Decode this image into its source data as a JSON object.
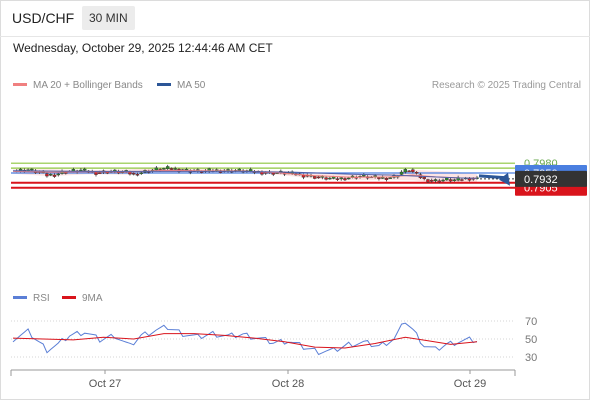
{
  "header": {
    "symbol": "USD/CHF",
    "interval": "30 MIN",
    "datetime": "Wednesday, October 29, 2025 12:44:46 AM CET",
    "credit": "Research © 2025 Trading Central"
  },
  "legend": {
    "ma_bb": "MA 20 + Bollinger Bands",
    "ma50": "MA 50",
    "rsi": "RSI",
    "rsi_ma": "9MA"
  },
  "colors": {
    "ma20": "#f08080",
    "bands_fill": "#fde0e0",
    "ma50": "#5060a8",
    "resistance": "#8dc63f",
    "pivot": "#4a7fe0",
    "support": "#d9141c",
    "last_price_bg": "#333333",
    "candle_up": "#2e8b2e",
    "candle_down": "#c8202a",
    "arrow": "#2c5697",
    "rsi": "#5b7fd6",
    "rsi_ma": "#d9141c"
  },
  "chart_data": [
    {
      "type": "candlestick",
      "instrument": "USD/CHF",
      "timeframe": "30 MIN",
      "x_ticks": [
        "Oct 27",
        "Oct 28",
        "Oct 29"
      ],
      "levels": [
        {
          "value": 0.798,
          "label": "0.7980",
          "kind": "resistance"
        },
        {
          "value": 0.7965,
          "label": "0.7965",
          "kind": "resistance"
        },
        {
          "value": 0.795,
          "label": "0.7950",
          "kind": "pivot"
        },
        {
          "value": 0.792,
          "label": "0.7920",
          "kind": "support"
        },
        {
          "value": 0.7905,
          "label": "0.7905",
          "kind": "support"
        }
      ],
      "last_price": {
        "value": 0.7932,
        "label": "0.7932"
      },
      "target": 0.7905,
      "close_path": [
        {
          "i": 0,
          "c": 0.7957
        },
        {
          "i": 4,
          "c": 0.796
        },
        {
          "i": 7,
          "c": 0.7952
        },
        {
          "i": 9,
          "c": 0.7943
        },
        {
          "i": 11,
          "c": 0.7945
        },
        {
          "i": 14,
          "c": 0.7955
        },
        {
          "i": 18,
          "c": 0.7958
        },
        {
          "i": 22,
          "c": 0.7951
        },
        {
          "i": 26,
          "c": 0.7955
        },
        {
          "i": 30,
          "c": 0.7952
        },
        {
          "i": 32,
          "c": 0.7946
        },
        {
          "i": 35,
          "c": 0.7955
        },
        {
          "i": 38,
          "c": 0.7961
        },
        {
          "i": 41,
          "c": 0.7964
        },
        {
          "i": 44,
          "c": 0.796
        },
        {
          "i": 47,
          "c": 0.7957
        },
        {
          "i": 50,
          "c": 0.7955
        },
        {
          "i": 53,
          "c": 0.7958
        },
        {
          "i": 56,
          "c": 0.7957
        },
        {
          "i": 59,
          "c": 0.7958
        },
        {
          "i": 62,
          "c": 0.7956
        },
        {
          "i": 65,
          "c": 0.7953
        },
        {
          "i": 68,
          "c": 0.795
        },
        {
          "i": 71,
          "c": 0.7951
        },
        {
          "i": 74,
          "c": 0.7948
        },
        {
          "i": 77,
          "c": 0.7943
        },
        {
          "i": 80,
          "c": 0.7938
        },
        {
          "i": 83,
          "c": 0.7934
        },
        {
          "i": 86,
          "c": 0.7932
        },
        {
          "i": 89,
          "c": 0.7936
        },
        {
          "i": 92,
          "c": 0.794
        },
        {
          "i": 95,
          "c": 0.7937
        },
        {
          "i": 98,
          "c": 0.7934
        },
        {
          "i": 101,
          "c": 0.7938
        },
        {
          "i": 103,
          "c": 0.7953
        },
        {
          "i": 105,
          "c": 0.796
        },
        {
          "i": 107,
          "c": 0.7945
        },
        {
          "i": 109,
          "c": 0.793
        },
        {
          "i": 111,
          "c": 0.7926
        },
        {
          "i": 113,
          "c": 0.7927
        },
        {
          "i": 115,
          "c": 0.793
        },
        {
          "i": 117,
          "c": 0.7928
        },
        {
          "i": 119,
          "c": 0.7932
        },
        {
          "i": 121,
          "c": 0.7934
        },
        {
          "i": 123,
          "c": 0.7932
        }
      ],
      "ma20": [
        {
          "i": 0,
          "v": 0.7955
        },
        {
          "i": 10,
          "v": 0.7952
        },
        {
          "i": 20,
          "v": 0.7954
        },
        {
          "i": 30,
          "v": 0.7953
        },
        {
          "i": 40,
          "v": 0.7958
        },
        {
          "i": 50,
          "v": 0.7957
        },
        {
          "i": 60,
          "v": 0.7956
        },
        {
          "i": 70,
          "v": 0.7951
        },
        {
          "i": 80,
          "v": 0.7942
        },
        {
          "i": 90,
          "v": 0.7937
        },
        {
          "i": 100,
          "v": 0.7938
        },
        {
          "i": 106,
          "v": 0.7944
        },
        {
          "i": 112,
          "v": 0.7938
        },
        {
          "i": 118,
          "v": 0.7935
        },
        {
          "i": 123,
          "v": 0.7934
        }
      ],
      "bands_upper": [
        {
          "i": 0,
          "v": 0.7961
        },
        {
          "i": 10,
          "v": 0.7962
        },
        {
          "i": 20,
          "v": 0.7958
        },
        {
          "i": 30,
          "v": 0.7961
        },
        {
          "i": 40,
          "v": 0.7966
        },
        {
          "i": 50,
          "v": 0.7964
        },
        {
          "i": 60,
          "v": 0.796
        },
        {
          "i": 70,
          "v": 0.7957
        },
        {
          "i": 80,
          "v": 0.7951
        },
        {
          "i": 90,
          "v": 0.7946
        },
        {
          "i": 100,
          "v": 0.7947
        },
        {
          "i": 106,
          "v": 0.796
        },
        {
          "i": 112,
          "v": 0.7956
        },
        {
          "i": 118,
          "v": 0.7953
        },
        {
          "i": 123,
          "v": 0.7946
        }
      ],
      "bands_lower": [
        {
          "i": 0,
          "v": 0.7948
        },
        {
          "i": 10,
          "v": 0.794
        },
        {
          "i": 20,
          "v": 0.7946
        },
        {
          "i": 30,
          "v": 0.7945
        },
        {
          "i": 40,
          "v": 0.795
        },
        {
          "i": 50,
          "v": 0.7951
        },
        {
          "i": 60,
          "v": 0.7951
        },
        {
          "i": 70,
          "v": 0.7945
        },
        {
          "i": 80,
          "v": 0.7932
        },
        {
          "i": 90,
          "v": 0.7928
        },
        {
          "i": 100,
          "v": 0.7929
        },
        {
          "i": 106,
          "v": 0.7928
        },
        {
          "i": 112,
          "v": 0.792
        },
        {
          "i": 118,
          "v": 0.7916
        },
        {
          "i": 123,
          "v": 0.7918
        }
      ],
      "ma50": [
        {
          "i": 0,
          "v": 0.7957
        },
        {
          "i": 20,
          "v": 0.7955
        },
        {
          "i": 40,
          "v": 0.7955
        },
        {
          "i": 60,
          "v": 0.7955
        },
        {
          "i": 75,
          "v": 0.7952
        },
        {
          "i": 90,
          "v": 0.7946
        },
        {
          "i": 100,
          "v": 0.7944
        },
        {
          "i": 110,
          "v": 0.7939
        },
        {
          "i": 118,
          "v": 0.7935
        },
        {
          "i": 123,
          "v": 0.7934
        }
      ]
    },
    {
      "type": "line",
      "name": "RSI",
      "y_ticks": [
        70,
        50,
        30
      ],
      "ylim": [
        25,
        75
      ],
      "series": [
        {
          "name": "RSI",
          "values": [
            {
              "i": 0,
              "v": 50
            },
            {
              "i": 4,
              "v": 58
            },
            {
              "i": 7,
              "v": 46
            },
            {
              "i": 9,
              "v": 38
            },
            {
              "i": 12,
              "v": 44
            },
            {
              "i": 15,
              "v": 54
            },
            {
              "i": 19,
              "v": 58
            },
            {
              "i": 23,
              "v": 49
            },
            {
              "i": 27,
              "v": 54
            },
            {
              "i": 31,
              "v": 42
            },
            {
              "i": 34,
              "v": 54
            },
            {
              "i": 38,
              "v": 60
            },
            {
              "i": 41,
              "v": 63
            },
            {
              "i": 45,
              "v": 56
            },
            {
              "i": 49,
              "v": 52
            },
            {
              "i": 53,
              "v": 56
            },
            {
              "i": 57,
              "v": 53
            },
            {
              "i": 61,
              "v": 55
            },
            {
              "i": 65,
              "v": 51
            },
            {
              "i": 69,
              "v": 46
            },
            {
              "i": 73,
              "v": 48
            },
            {
              "i": 77,
              "v": 41
            },
            {
              "i": 81,
              "v": 36
            },
            {
              "i": 85,
              "v": 37
            },
            {
              "i": 89,
              "v": 44
            },
            {
              "i": 93,
              "v": 46
            },
            {
              "i": 97,
              "v": 42
            },
            {
              "i": 101,
              "v": 50
            },
            {
              "i": 104,
              "v": 70
            },
            {
              "i": 106,
              "v": 60
            },
            {
              "i": 109,
              "v": 43
            },
            {
              "i": 112,
              "v": 38
            },
            {
              "i": 115,
              "v": 44
            },
            {
              "i": 118,
              "v": 47
            },
            {
              "i": 121,
              "v": 49
            },
            {
              "i": 123,
              "v": 48
            }
          ]
        },
        {
          "name": "9MA",
          "values": [
            {
              "i": 0,
              "v": 51
            },
            {
              "i": 8,
              "v": 50
            },
            {
              "i": 16,
              "v": 49
            },
            {
              "i": 24,
              "v": 52
            },
            {
              "i": 32,
              "v": 50
            },
            {
              "i": 40,
              "v": 56
            },
            {
              "i": 48,
              "v": 56
            },
            {
              "i": 56,
              "v": 54
            },
            {
              "i": 64,
              "v": 51
            },
            {
              "i": 72,
              "v": 47
            },
            {
              "i": 80,
              "v": 41
            },
            {
              "i": 88,
              "v": 40
            },
            {
              "i": 96,
              "v": 45
            },
            {
              "i": 104,
              "v": 52
            },
            {
              "i": 110,
              "v": 48
            },
            {
              "i": 116,
              "v": 44
            },
            {
              "i": 123,
              "v": 47
            }
          ]
        }
      ]
    }
  ]
}
